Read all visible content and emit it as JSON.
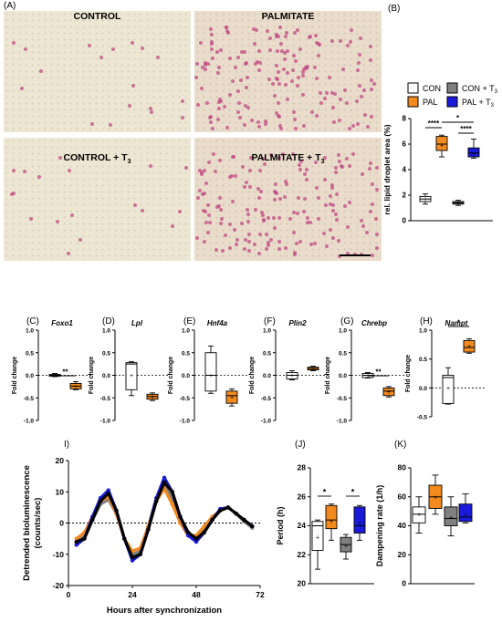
{
  "panel_letters": {
    "A": "(A)",
    "B": "(B)",
    "C": "(C)",
    "D": "(D)",
    "E": "(E)",
    "F": "(F)",
    "G": "(G)",
    "H": "(H)",
    "I": "I)",
    "J": "(J)",
    "K": "(K)"
  },
  "micrographs": [
    {
      "label": "CONTROL"
    },
    {
      "label": "PALMITATE"
    },
    {
      "label": "CONTROL + T",
      "sub": "3"
    },
    {
      "label": "PALMITATE +  T",
      "sub": "3"
    }
  ],
  "colors": {
    "CON": "#ffffff",
    "PAL": "#f28a1e",
    "CON_T3": "#808080",
    "PAL_T3": "#1a1adc",
    "stain": "#c24a84"
  },
  "legend": [
    {
      "label": "CON",
      "color": "#ffffff"
    },
    {
      "label": "CON + T",
      "sub": "3",
      "color": "#808080"
    },
    {
      "label": "PAL",
      "color": "#f28a1e"
    },
    {
      "label": "PAL + T",
      "sub": "3",
      "color": "#1a1adc"
    }
  ],
  "chart_data": [
    {
      "id": "B",
      "type": "box",
      "ylabel": "rel. lipid droplet area (%)",
      "ylim": [
        0,
        8
      ],
      "yticks": [
        "0",
        "2",
        "4",
        "6",
        "8"
      ],
      "groups": [
        {
          "group": "CON",
          "min": 1.3,
          "q1": 1.5,
          "median": 1.7,
          "q3": 1.9,
          "max": 2.1,
          "mean": 1.7
        },
        {
          "group": "PAL",
          "min": 5.0,
          "q1": 5.5,
          "median": 6.0,
          "q3": 6.6,
          "max": 6.7,
          "mean": 5.9
        },
        {
          "group": "CON_T3",
          "min": 1.2,
          "q1": 1.3,
          "median": 1.4,
          "q3": 1.5,
          "max": 1.6,
          "mean": 1.4
        },
        {
          "group": "PAL_T3",
          "min": 4.9,
          "q1": 5.0,
          "median": 5.3,
          "q3": 5.7,
          "max": 6.4,
          "mean": 5.3
        }
      ],
      "significance": [
        "****",
        "*",
        "****"
      ]
    },
    {
      "id": "C",
      "gene": "Foxo1",
      "type": "box",
      "ylabel": "Fold change",
      "ylim": [
        -1,
        1
      ],
      "yticks": [
        "1.0",
        "0.5",
        "0.0",
        "-0.5",
        "-1.0"
      ],
      "significance": "**",
      "groups": [
        {
          "group": "CON",
          "min": -0.03,
          "q1": -0.02,
          "median": 0.0,
          "q3": 0.02,
          "max": 0.04,
          "mean": 0.0
        },
        {
          "group": "PAL",
          "min": -0.32,
          "q1": -0.3,
          "median": -0.24,
          "q3": -0.18,
          "max": -0.14,
          "mean": -0.24
        }
      ]
    },
    {
      "id": "D",
      "gene": "Lpl",
      "type": "box",
      "ylabel": "Fold change",
      "ylim": [
        -1,
        1
      ],
      "yticks": [
        "1.0",
        "0.5",
        "0.0",
        "-0.5",
        "-1.0"
      ],
      "groups": [
        {
          "group": "CON",
          "min": -0.45,
          "q1": -0.32,
          "median": 0.25,
          "q3": 0.28,
          "max": 0.3,
          "mean": 0.0
        },
        {
          "group": "PAL",
          "min": -0.56,
          "q1": -0.53,
          "median": -0.47,
          "q3": -0.42,
          "max": -0.39,
          "mean": -0.47
        }
      ]
    },
    {
      "id": "E",
      "gene": "Hnf4a",
      "type": "box",
      "ylabel": "Fold change",
      "ylim": [
        -1,
        1
      ],
      "yticks": [
        "1.0",
        "0.5",
        "0.0",
        "-0.5",
        "-1.0"
      ],
      "groups": [
        {
          "group": "CON",
          "min": -0.4,
          "q1": -0.35,
          "median": 0.0,
          "q3": 0.5,
          "max": 0.65,
          "mean": 0.0
        },
        {
          "group": "PAL",
          "min": -0.68,
          "q1": -0.62,
          "median": -0.45,
          "q3": -0.35,
          "max": -0.3,
          "mean": -0.48
        }
      ]
    },
    {
      "id": "F",
      "gene": "Plin2",
      "type": "box",
      "ylabel": "Fold change",
      "ylim": [
        -1,
        1
      ],
      "yticks": [
        "1.0",
        "0.5",
        "0.0",
        "-0.5",
        "-1.0"
      ],
      "groups": [
        {
          "group": "CON",
          "min": -0.1,
          "q1": -0.08,
          "median": 0.0,
          "q3": 0.06,
          "max": 0.1,
          "mean": 0.0
        },
        {
          "group": "PAL",
          "min": 0.1,
          "q1": 0.12,
          "median": 0.15,
          "q3": 0.18,
          "max": 0.2,
          "mean": 0.15
        }
      ]
    },
    {
      "id": "G",
      "gene": "Chrebp",
      "type": "box",
      "ylabel": "Fold change",
      "ylim": [
        -1,
        1
      ],
      "yticks": [
        "1.0",
        "0.5",
        "0.0",
        "-0.5",
        "-1.0"
      ],
      "significance": "**",
      "groups": [
        {
          "group": "CON",
          "min": -0.06,
          "q1": -0.05,
          "median": 0.0,
          "q3": 0.04,
          "max": 0.06,
          "mean": 0.0
        },
        {
          "group": "PAL",
          "min": -0.48,
          "q1": -0.45,
          "median": -0.35,
          "q3": -0.28,
          "max": -0.25,
          "mean": -0.36
        }
      ]
    },
    {
      "id": "H",
      "gene": "Nampt",
      "type": "box",
      "ylabel": "Fold change",
      "ylim": [
        -0.5,
        1
      ],
      "yticks": [
        "1.0",
        "0.5",
        "0.0",
        "-0.5"
      ],
      "significance": "*",
      "groups": [
        {
          "group": "CON",
          "min": -0.28,
          "q1": -0.27,
          "median": 0.18,
          "q3": 0.22,
          "max": 0.35,
          "mean": 0.0
        },
        {
          "group": "PAL",
          "min": 0.6,
          "q1": 0.62,
          "median": 0.7,
          "q3": 0.82,
          "max": 0.85,
          "mean": 0.72
        }
      ]
    },
    {
      "id": "I",
      "type": "line",
      "xlabel": "Hours after synchronization",
      "ylabel": "Detrended bioluminescence (counts/sec)",
      "xlim": [
        0,
        72
      ],
      "ylim": [
        -20,
        20
      ],
      "xticks": [
        "0",
        "24",
        "48",
        "72"
      ],
      "yticks": [
        "20",
        "10",
        "0",
        "-10",
        "-20"
      ],
      "series": [
        {
          "group": "CON_T3",
          "x": [
            3,
            6,
            9,
            12,
            15,
            18,
            21,
            24,
            27,
            30,
            33,
            36,
            39,
            42,
            45,
            48,
            51,
            54,
            57,
            60,
            63,
            66,
            69
          ],
          "y": [
            -6,
            -4,
            1,
            6,
            7.5,
            3,
            -5,
            -10,
            -9,
            -1,
            8,
            12,
            8,
            1,
            -4,
            -5,
            -2,
            1.5,
            4,
            5,
            3,
            0.5,
            -1.5
          ]
        },
        {
          "group": "PAL",
          "x": [
            3,
            6,
            9,
            12,
            15,
            18,
            21,
            24,
            27,
            30,
            33,
            36,
            39,
            42,
            45,
            48,
            51,
            54,
            57,
            60,
            63,
            66,
            69
          ],
          "y": [
            -5,
            -3,
            2,
            7,
            8.5,
            3,
            -5,
            -9,
            -8,
            -1,
            7,
            11,
            6,
            0,
            -4,
            -4,
            -1,
            2,
            4,
            5,
            3,
            1,
            -1
          ]
        },
        {
          "group": "PAL_T3",
          "x": [
            3,
            6,
            9,
            12,
            15,
            18,
            21,
            24,
            27,
            30,
            33,
            36,
            39,
            42,
            45,
            48,
            51,
            54,
            57,
            60,
            63,
            66,
            69
          ],
          "y": [
            -7,
            -5,
            2,
            8,
            10.5,
            4,
            -5,
            -12,
            -10,
            -2,
            8,
            14.5,
            10,
            2,
            -4,
            -6,
            -3,
            1,
            4.5,
            5,
            3,
            1,
            -1
          ]
        },
        {
          "group": "CON",
          "x": [
            3,
            6,
            9,
            12,
            15,
            18,
            21,
            24,
            27,
            30,
            33,
            36,
            39,
            42,
            45,
            48,
            51,
            54,
            57,
            60,
            63,
            66,
            69
          ],
          "y": [
            -6,
            -5,
            1,
            7,
            9.5,
            4,
            -5,
            -11,
            -10,
            -2,
            7,
            13,
            10,
            2,
            -3,
            -5,
            -3,
            1,
            4,
            5,
            3,
            1,
            -1
          ]
        }
      ]
    },
    {
      "id": "J",
      "type": "box",
      "ylabel": "Period (h)",
      "ylim": [
        20,
        28
      ],
      "yticks": [
        "28",
        "26",
        "24",
        "22",
        "20"
      ],
      "significance": [
        "*",
        "*"
      ],
      "groups": [
        {
          "group": "CON",
          "min": 21,
          "q1": 22.3,
          "median": 24,
          "q3": 24.3,
          "max": 24.4,
          "mean": 23.2
        },
        {
          "group": "PAL",
          "min": 23,
          "q1": 23.8,
          "median": 24.4,
          "q3": 25.4,
          "max": 25.5,
          "mean": 24.3
        },
        {
          "group": "CON_T3",
          "min": 21.7,
          "q1": 22.2,
          "median": 22.7,
          "q3": 23.2,
          "max": 23.4,
          "mean": 22.6
        },
        {
          "group": "PAL_T3",
          "min": 23,
          "q1": 23.5,
          "median": 24,
          "q3": 25.3,
          "max": 25.4,
          "mean": 24.2
        }
      ]
    },
    {
      "id": "K",
      "type": "box",
      "ylabel": "Dampening rate (1/h)",
      "ylim": [
        0,
        80
      ],
      "yticks": [
        "80",
        "60",
        "40",
        "20",
        "0"
      ],
      "groups": [
        {
          "group": "CON",
          "min": 35,
          "q1": 42,
          "median": 48,
          "q3": 53,
          "max": 60,
          "mean": 48
        },
        {
          "group": "PAL",
          "min": 48,
          "q1": 52,
          "median": 60,
          "q3": 68,
          "max": 75,
          "mean": 60
        },
        {
          "group": "CON_T3",
          "min": 33,
          "q1": 40,
          "median": 45,
          "q3": 53,
          "max": 60,
          "mean": 46
        },
        {
          "group": "PAL_T3",
          "min": 42,
          "q1": 43,
          "median": 46,
          "q3": 55,
          "max": 62,
          "mean": 48
        }
      ]
    }
  ]
}
